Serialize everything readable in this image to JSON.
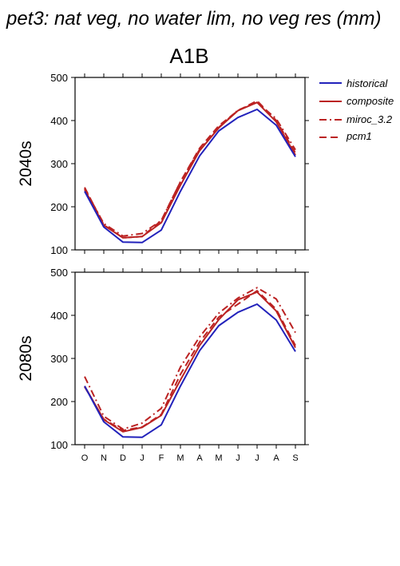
{
  "figure": {
    "title": "pet3: nat veg, no water lim, no veg res (mm)",
    "scenario": "A1B"
  },
  "legend": [
    {
      "name": "historical",
      "color": "#2222bb",
      "dash": "solid"
    },
    {
      "name": "composite",
      "color": "#bb2222",
      "dash": "solid"
    },
    {
      "name": "miroc_3.2",
      "color": "#bb2222",
      "dash": "dashdot"
    },
    {
      "name": "pcm1",
      "color": "#bb2222",
      "dash": "dashed"
    }
  ],
  "chart_data": [
    {
      "type": "line",
      "panel": "2040s",
      "ylabel": "2040s",
      "xlabel": "",
      "categories": [
        "O",
        "N",
        "D",
        "J",
        "F",
        "M",
        "A",
        "M",
        "J",
        "J",
        "A",
        "S"
      ],
      "ylim": [
        100,
        500
      ],
      "yticks": [
        100,
        200,
        300,
        400,
        500
      ],
      "grid": false,
      "series": [
        {
          "name": "historical",
          "values": [
            236,
            153,
            118,
            117,
            146,
            236,
            318,
            376,
            407,
            426,
            389,
            316
          ]
        },
        {
          "name": "composite",
          "values": [
            240,
            157,
            128,
            131,
            163,
            250,
            330,
            383,
            423,
            442,
            397,
            320
          ]
        },
        {
          "name": "miroc_3.2",
          "values": [
            242,
            161,
            132,
            138,
            168,
            258,
            333,
            384,
            424,
            442,
            404,
            332
          ]
        },
        {
          "name": "pcm1",
          "values": [
            245,
            158,
            128,
            131,
            168,
            258,
            336,
            388,
            423,
            446,
            400,
            325
          ]
        }
      ]
    },
    {
      "type": "line",
      "panel": "2080s",
      "ylabel": "2080s",
      "xlabel": "",
      "categories": [
        "O",
        "N",
        "D",
        "J",
        "F",
        "M",
        "A",
        "M",
        "J",
        "J",
        "A",
        "S"
      ],
      "ylim": [
        100,
        500
      ],
      "yticks": [
        100,
        200,
        300,
        400,
        500
      ],
      "grid": false,
      "series": [
        {
          "name": "historical",
          "values": [
            236,
            153,
            118,
            117,
            146,
            236,
            318,
            376,
            407,
            426,
            389,
            316
          ]
        },
        {
          "name": "composite",
          "values": [
            236,
            158,
            130,
            140,
            168,
            250,
            330,
            390,
            436,
            454,
            410,
            325
          ]
        },
        {
          "name": "miroc_3.2",
          "values": [
            258,
            166,
            136,
            150,
            184,
            280,
            350,
            405,
            440,
            464,
            438,
            360
          ]
        },
        {
          "name": "pcm1",
          "values": [
            234,
            159,
            133,
            141,
            170,
            263,
            338,
            396,
            426,
            457,
            414,
            330
          ]
        }
      ]
    }
  ]
}
